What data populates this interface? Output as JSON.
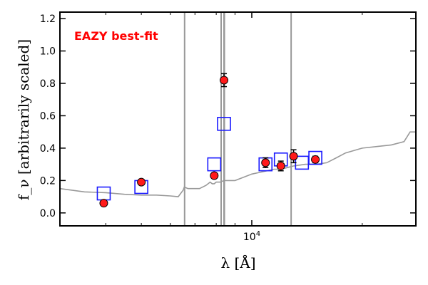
{
  "chart_data": {
    "type": "scatter",
    "title": "",
    "xlabel": "λ [Å]",
    "ylabel": "f_ν [arbitrarily scaled]",
    "xscale": "log",
    "xlim": [
      3000,
      28000
    ],
    "ylim": [
      -0.08,
      1.24
    ],
    "x_ticks": [
      {
        "value": 10000,
        "label": "10^4"
      }
    ],
    "y_ticks": [
      {
        "value": 0.0,
        "label": "0.0"
      },
      {
        "value": 0.2,
        "label": "0.2"
      },
      {
        "value": 0.4,
        "label": "0.4"
      },
      {
        "value": 0.6,
        "label": "0.6"
      },
      {
        "value": 0.8,
        "label": "0.8"
      },
      {
        "value": 1.0,
        "label": "1.0"
      },
      {
        "value": 1.2,
        "label": "1.2"
      }
    ],
    "grid": false,
    "annotation": {
      "text": "EAZY best-fit",
      "color": "#ff0000",
      "position": "top-left"
    },
    "colors": {
      "observed": "#ff1a1a",
      "model_photometry": "#1a1aff",
      "sed": "#999999",
      "errorbar": "#000000"
    },
    "series": [
      {
        "kind": "line",
        "x": [
          3000,
          3500,
          4000,
          4500,
          5000,
          5500,
          6000,
          6300,
          6500,
          6550,
          6700,
          7200,
          7500,
          7700,
          7800,
          7900,
          8000,
          8200,
          8400,
          8600,
          9000,
          9500,
          10000,
          10500,
          11000,
          11500,
          12000,
          12500,
          13000,
          14000,
          15000,
          16000,
          17000,
          18000,
          20000,
          22000,
          24000,
          26000,
          27000,
          28000
        ],
        "y": [
          0.15,
          0.13,
          0.125,
          0.115,
          0.11,
          0.11,
          0.105,
          0.1,
          0.14,
          0.16,
          0.15,
          0.15,
          0.17,
          0.19,
          0.18,
          0.18,
          0.19,
          0.19,
          0.2,
          0.2,
          0.2,
          0.22,
          0.24,
          0.25,
          0.26,
          0.27,
          0.27,
          0.28,
          0.29,
          0.3,
          0.3,
          0.31,
          0.34,
          0.37,
          0.4,
          0.41,
          0.42,
          0.44,
          0.5,
          0.5
        ]
      },
      {
        "kind": "emission_lines",
        "x": [
          6560,
          8250,
          8400,
          8420,
          12800
        ]
      },
      {
        "kind": "model_points",
        "x": [
          3950,
          5000,
          7900,
          8400,
          10900,
          12000,
          13700,
          14900
        ],
        "y": [
          0.12,
          0.16,
          0.3,
          0.55,
          0.3,
          0.33,
          0.31,
          0.34
        ]
      },
      {
        "kind": "observed_points",
        "x": [
          3950,
          5000,
          7900,
          8400,
          10900,
          12000,
          13000,
          14900
        ],
        "y": [
          0.06,
          0.19,
          0.23,
          0.82,
          0.31,
          0.29,
          0.35,
          0.33
        ],
        "err": [
          0.0,
          0.0,
          0.0,
          0.04,
          0.03,
          0.03,
          0.04,
          0.02
        ]
      }
    ]
  }
}
